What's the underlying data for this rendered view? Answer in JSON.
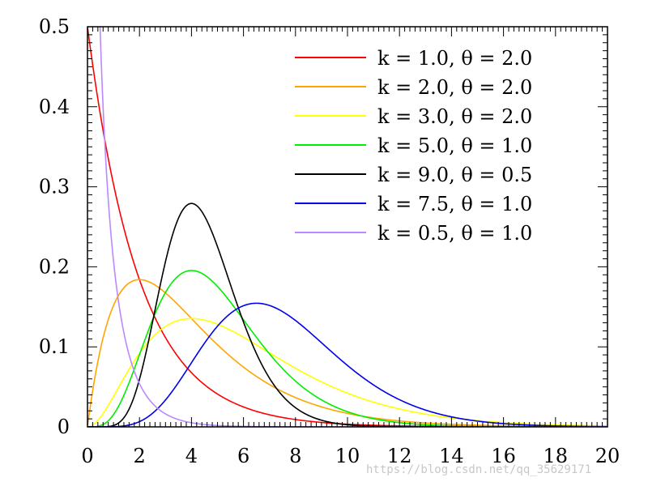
{
  "chart_data": {
    "type": "line",
    "title": "",
    "xlabel": "",
    "ylabel": "",
    "xlim": [
      0,
      20
    ],
    "ylim": [
      0,
      0.5
    ],
    "x_ticks": [
      "0",
      "2",
      "4",
      "6",
      "8",
      "10",
      "12",
      "14",
      "16",
      "18",
      "20"
    ],
    "y_ticks": [
      "0",
      "0.1",
      "0.2",
      "0.3",
      "0.4",
      "0.5"
    ],
    "x_minor_step": 0.2,
    "y_minor_step": 0.01,
    "grid": false,
    "legend_position": "top-right",
    "series": [
      {
        "name": "k = 1.0, θ = 2.0",
        "k": 1.0,
        "theta": 2.0,
        "color": "#ff0000"
      },
      {
        "name": "k = 2.0, θ = 2.0",
        "k": 2.0,
        "theta": 2.0,
        "color": "#ffa500"
      },
      {
        "name": "k = 3.0, θ = 2.0",
        "k": 3.0,
        "theta": 2.0,
        "color": "#ffff00"
      },
      {
        "name": "k = 5.0, θ = 1.0",
        "k": 5.0,
        "theta": 1.0,
        "color": "#00ee00"
      },
      {
        "name": "k = 9.0, θ = 0.5",
        "k": 9.0,
        "theta": 0.5,
        "color": "#000000"
      },
      {
        "name": "k = 7.5, θ = 1.0",
        "k": 7.5,
        "theta": 1.0,
        "color": "#0000ee"
      },
      {
        "name": "k = 0.5, θ = 1.0",
        "k": 0.5,
        "theta": 1.0,
        "color": "#bb88ff"
      }
    ]
  },
  "watermark": "https://blog.csdn.net/qq_35629171"
}
